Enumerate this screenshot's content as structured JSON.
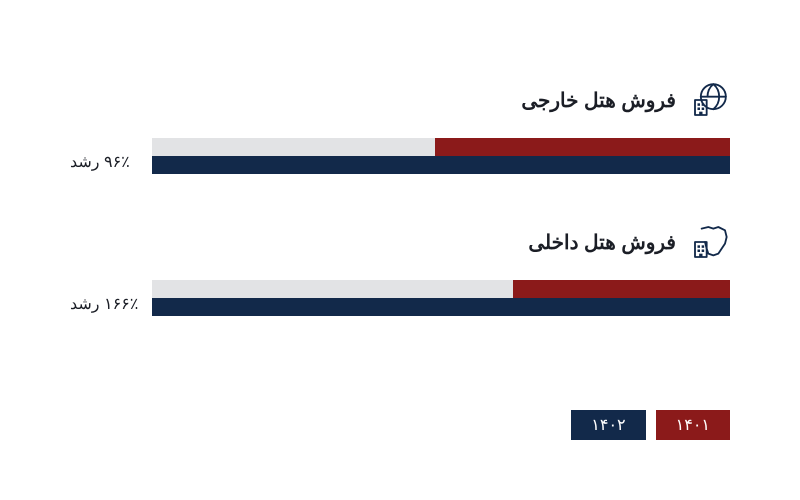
{
  "colors": {
    "year1": "#8b1a1a",
    "year2": "#12294a",
    "track": "#e2e3e5",
    "text": "#1b1e26",
    "iconStroke": "#12294a",
    "background": "#ffffff"
  },
  "sections": [
    {
      "id": "foreign",
      "title": "فروش هتل خارجی",
      "growthLabel": "۹۶٪ رشد",
      "bar1Value": 51,
      "bar2Value": 100
    },
    {
      "id": "domestic",
      "title": "فروش هتل داخلی",
      "growthLabel": "۱۶۶٪ رشد",
      "bar1Value": 37.5,
      "bar2Value": 100
    }
  ],
  "legend": {
    "year1": "۱۴۰۱",
    "year2": "۱۴۰۲"
  },
  "typography": {
    "titleFontSize": 20,
    "labelFontSize": 16,
    "legendFontSize": 16
  }
}
